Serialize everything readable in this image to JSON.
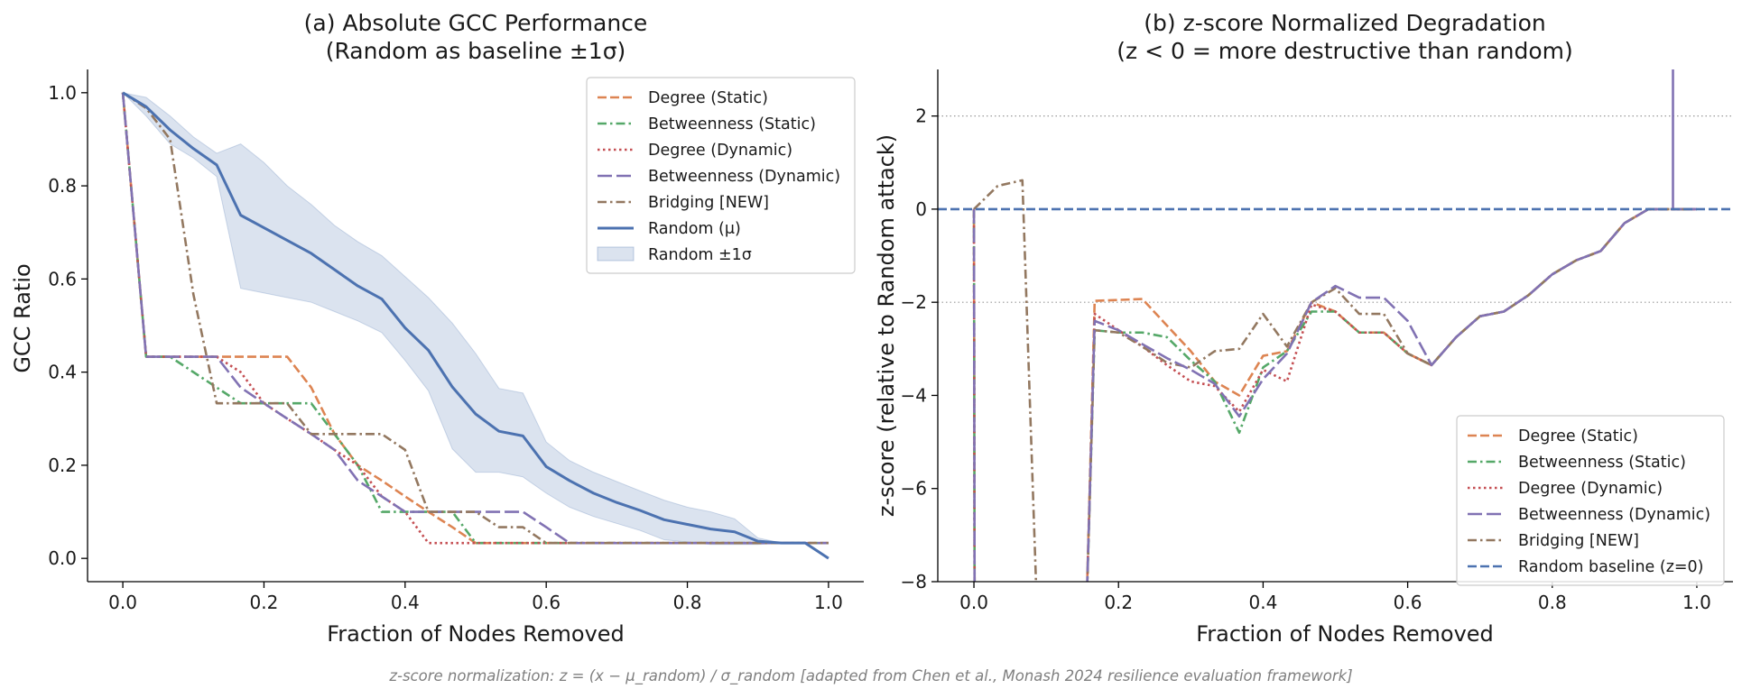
{
  "chart_data": [
    {
      "type": "line",
      "title": "(a) Absolute GCC Performance\n(Random as baseline ±1σ)",
      "xlabel": "Fraction of Nodes Removed",
      "ylabel": "GCC Ratio",
      "xlim": [
        -0.05,
        1.05
      ],
      "ylim": [
        -0.05,
        1.05
      ],
      "xticks": [
        "0.0",
        "0.2",
        "0.4",
        "0.6",
        "0.8",
        "1.0"
      ],
      "yticks": [
        "0.0",
        "0.2",
        "0.4",
        "0.6",
        "0.8",
        "1.0"
      ],
      "legend_position": "top-right",
      "x": [
        0.0,
        0.033,
        0.067,
        0.1,
        0.133,
        0.167,
        0.2,
        0.233,
        0.267,
        0.3,
        0.333,
        0.367,
        0.4,
        0.433,
        0.467,
        0.5,
        0.533,
        0.567,
        0.6,
        0.633,
        0.667,
        0.7,
        0.733,
        0.767,
        0.8,
        0.833,
        0.867,
        0.9,
        0.933,
        0.967,
        1.0
      ],
      "series": [
        {
          "name": "Degree (Static)",
          "color": "#dd8452",
          "dash": "dashed",
          "values": [
            1.0,
            0.433,
            0.433,
            0.433,
            0.433,
            0.433,
            0.433,
            0.433,
            0.367,
            0.267,
            0.2,
            0.167,
            0.133,
            0.1,
            0.067,
            0.033,
            0.033,
            0.033,
            0.033,
            0.033,
            0.033,
            0.033,
            0.033,
            0.033,
            0.033,
            0.033,
            0.033,
            0.033,
            0.033,
            0.033,
            0.033
          ]
        },
        {
          "name": "Betweenness (Static)",
          "color": "#55a868",
          "dash": "dashdot",
          "values": [
            1.0,
            0.433,
            0.433,
            0.4,
            0.367,
            0.333,
            0.333,
            0.333,
            0.333,
            0.267,
            0.2,
            0.1,
            0.1,
            0.1,
            0.1,
            0.033,
            0.033,
            0.033,
            0.033,
            0.033,
            0.033,
            0.033,
            0.033,
            0.033,
            0.033,
            0.033,
            0.033,
            0.033,
            0.033,
            0.033,
            0.033
          ]
        },
        {
          "name": "Degree (Dynamic)",
          "color": "#c44e52",
          "dash": "dotted",
          "values": [
            1.0,
            0.433,
            0.433,
            0.433,
            0.433,
            0.4,
            0.333,
            0.3,
            0.267,
            0.233,
            0.2,
            0.133,
            0.1,
            0.033,
            0.033,
            0.033,
            0.033,
            0.033,
            0.033,
            0.033,
            0.033,
            0.033,
            0.033,
            0.033,
            0.033,
            0.033,
            0.033,
            0.033,
            0.033,
            0.033,
            0.033
          ]
        },
        {
          "name": "Betweenness (Dynamic)",
          "color": "#8172b3",
          "dash": "longdash",
          "values": [
            1.0,
            0.433,
            0.433,
            0.433,
            0.433,
            0.367,
            0.333,
            0.3,
            0.267,
            0.233,
            0.167,
            0.133,
            0.1,
            0.1,
            0.1,
            0.1,
            0.1,
            0.1,
            0.067,
            0.033,
            0.033,
            0.033,
            0.033,
            0.033,
            0.033,
            0.033,
            0.033,
            0.033,
            0.033,
            0.033,
            0.033
          ]
        },
        {
          "name": "Bridging [NEW]",
          "color": "#937860",
          "dash": "dashdot",
          "values": [
            1.0,
            0.967,
            0.9,
            0.567,
            0.333,
            0.333,
            0.333,
            0.333,
            0.267,
            0.267,
            0.267,
            0.267,
            0.233,
            0.1,
            0.1,
            0.1,
            0.067,
            0.067,
            0.033,
            0.033,
            0.033,
            0.033,
            0.033,
            0.033,
            0.033,
            0.033,
            0.033,
            0.033,
            0.033,
            0.033,
            0.033
          ]
        },
        {
          "name": "Random (μ)",
          "color": "#4c72b0",
          "dash": "solid",
          "values": [
            1.0,
            0.97,
            0.92,
            0.88,
            0.845,
            0.737,
            0.71,
            0.683,
            0.655,
            0.62,
            0.585,
            0.557,
            0.495,
            0.447,
            0.368,
            0.31,
            0.273,
            0.263,
            0.197,
            0.167,
            0.14,
            0.12,
            0.103,
            0.083,
            0.073,
            0.063,
            0.057,
            0.037,
            0.033,
            0.033,
            0.0
          ]
        }
      ],
      "band": {
        "name": "Random ±1σ",
        "color": "#4c72b0",
        "opacity": 0.2,
        "lower": [
          1.0,
          0.95,
          0.89,
          0.86,
          0.82,
          0.58,
          0.57,
          0.56,
          0.55,
          0.53,
          0.51,
          0.485,
          0.425,
          0.36,
          0.235,
          0.185,
          0.185,
          0.175,
          0.14,
          0.11,
          0.09,
          0.075,
          0.06,
          0.04,
          0.035,
          0.03,
          0.03,
          0.03,
          0.033,
          0.033,
          0.0
        ],
        "upper": [
          1.0,
          0.99,
          0.95,
          0.905,
          0.87,
          0.89,
          0.85,
          0.8,
          0.76,
          0.715,
          0.68,
          0.65,
          0.605,
          0.56,
          0.505,
          0.44,
          0.365,
          0.355,
          0.25,
          0.21,
          0.185,
          0.165,
          0.145,
          0.125,
          0.11,
          0.1,
          0.085,
          0.044,
          0.033,
          0.033,
          0.0
        ]
      }
    },
    {
      "type": "line",
      "title": "(b) z-score Normalized Degradation\n(z < 0 = more destructive than random)",
      "xlabel": "Fraction of Nodes Removed",
      "ylabel": "z-score  (relative to Random attack)",
      "xlim": [
        -0.05,
        1.05
      ],
      "ylim": [
        -8,
        3
      ],
      "xticks": [
        "0.0",
        "0.2",
        "0.4",
        "0.6",
        "0.8",
        "1.0"
      ],
      "yticks": [
        "−8",
        "−6",
        "−4",
        "−2",
        "0",
        "2"
      ],
      "reference_lines": [
        {
          "y": 2,
          "style": "dotted gray"
        },
        {
          "y": -2,
          "style": "dotted gray"
        }
      ],
      "legend_position": "bottom-right",
      "series": [
        {
          "name": "Degree (Static)",
          "color": "#dd8452",
          "dash": "dashed",
          "x": [
            0.0,
            0.001,
            0.155,
            0.167,
            0.2,
            0.233,
            0.267,
            0.3,
            0.333,
            0.367,
            0.4,
            0.433,
            0.467,
            0.5,
            0.533,
            0.567,
            0.6,
            0.633,
            0.667,
            0.7,
            0.733,
            0.767,
            0.8,
            0.833,
            0.867,
            0.9,
            0.933,
            0.967,
            1.0
          ],
          "values": [
            0.0,
            -9,
            -9,
            -1.97,
            -1.95,
            -1.93,
            -2.5,
            -3.05,
            -3.7,
            -4.0,
            -3.15,
            -3.05,
            -2.0,
            -2.2,
            -2.65,
            -2.65,
            -3.1,
            -3.35,
            -2.75,
            -2.3,
            -2.2,
            -1.85,
            -1.4,
            -1.1,
            -0.9,
            -0.3,
            0.0,
            0.0,
            0.0
          ]
        },
        {
          "name": "Betweenness (Static)",
          "color": "#55a868",
          "dash": "dashdot",
          "x": [
            0.0,
            0.001,
            0.155,
            0.167,
            0.2,
            0.233,
            0.267,
            0.3,
            0.333,
            0.367,
            0.4,
            0.433,
            0.467,
            0.5,
            0.533,
            0.567,
            0.6,
            0.633,
            0.667,
            0.7,
            0.733,
            0.767,
            0.8,
            0.833,
            0.867,
            0.9,
            0.933,
            0.967,
            1.0
          ],
          "values": [
            0.0,
            -9,
            -9,
            -2.6,
            -2.65,
            -2.65,
            -2.75,
            -3.25,
            -3.7,
            -4.8,
            -3.4,
            -3.05,
            -2.2,
            -2.2,
            -2.65,
            -2.65,
            -3.1,
            -3.35,
            -2.75,
            -2.3,
            -2.2,
            -1.85,
            -1.4,
            -1.1,
            -0.9,
            -0.3,
            0.0,
            0.0,
            0.0
          ]
        },
        {
          "name": "Degree (Dynamic)",
          "color": "#c44e52",
          "dash": "dotted",
          "x": [
            0.0,
            0.001,
            0.155,
            0.167,
            0.2,
            0.233,
            0.267,
            0.3,
            0.333,
            0.367,
            0.4,
            0.433,
            0.467,
            0.5,
            0.533,
            0.567,
            0.6,
            0.633,
            0.667,
            0.7,
            0.733,
            0.767,
            0.8,
            0.833,
            0.867,
            0.9,
            0.933,
            0.967,
            1.0
          ],
          "values": [
            0.0,
            -9,
            -9,
            -2.25,
            -2.6,
            -2.95,
            -3.35,
            -3.7,
            -3.8,
            -4.35,
            -3.45,
            -3.7,
            -2.05,
            -2.2,
            -2.65,
            -2.65,
            -3.1,
            -3.35,
            -2.75,
            -2.3,
            -2.2,
            -1.85,
            -1.4,
            -1.1,
            -0.9,
            -0.3,
            0.0,
            0.0,
            0.0
          ]
        },
        {
          "name": "Betweenness (Dynamic)",
          "color": "#8172b3",
          "dash": "longdash",
          "x": [
            0.0,
            0.001,
            0.155,
            0.167,
            0.2,
            0.233,
            0.267,
            0.3,
            0.333,
            0.367,
            0.4,
            0.433,
            0.467,
            0.5,
            0.533,
            0.567,
            0.6,
            0.633,
            0.667,
            0.7,
            0.733,
            0.767,
            0.8,
            0.833,
            0.867,
            0.9,
            0.933,
            0.967,
            0.967,
            0.967,
            1.0
          ],
          "values": [
            0.0,
            -9,
            -9,
            -2.4,
            -2.6,
            -2.9,
            -3.2,
            -3.45,
            -3.75,
            -4.45,
            -3.65,
            -3.1,
            -2.0,
            -1.65,
            -1.9,
            -1.9,
            -2.4,
            -3.35,
            -2.75,
            -2.3,
            -2.2,
            -1.85,
            -1.4,
            -1.1,
            -0.9,
            -0.3,
            0.0,
            0.0,
            3.5,
            0.0,
            0.0
          ]
        },
        {
          "name": "Bridging [NEW]",
          "color": "#937860",
          "dash": "dashdot",
          "x": [
            0.0,
            0.033,
            0.067,
            0.088,
            0.155,
            0.167,
            0.2,
            0.233,
            0.267,
            0.3,
            0.333,
            0.367,
            0.4,
            0.433,
            0.467,
            0.5,
            0.533,
            0.567,
            0.6,
            0.633,
            0.667,
            0.7,
            0.733,
            0.767,
            0.8,
            0.833,
            0.867,
            0.9,
            0.933,
            0.967,
            1.0
          ],
          "values": [
            0.0,
            0.5,
            0.62,
            -9,
            -9,
            -2.6,
            -2.65,
            -2.95,
            -3.3,
            -3.4,
            -3.05,
            -3.0,
            -2.25,
            -2.95,
            -2.0,
            -1.7,
            -2.25,
            -2.25,
            -3.1,
            -3.35,
            -2.75,
            -2.3,
            -2.2,
            -1.85,
            -1.4,
            -1.1,
            -0.9,
            -0.3,
            0.0,
            0.0,
            0.0
          ]
        },
        {
          "name": "Random baseline (z=0)",
          "color": "#4c72b0",
          "dash": "dashed",
          "x": [
            -0.05,
            1.05
          ],
          "values": [
            0,
            0
          ]
        }
      ]
    }
  ],
  "footnote": "z-score normalization: z = (x − μ_random) / σ_random  [adapted from Chen et al., Monash 2024 resilience evaluation framework]"
}
